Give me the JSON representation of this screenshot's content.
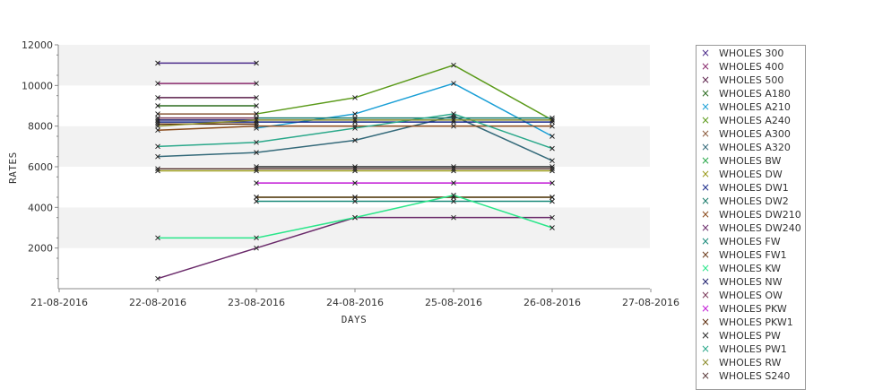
{
  "chart_data": {
    "type": "line",
    "xlabel": "DAYS",
    "ylabel": "RATES",
    "ylim": [
      0,
      12000
    ],
    "y_ticks": [
      2000,
      4000,
      6000,
      8000,
      10000,
      12000
    ],
    "x_ticks": [
      "21-08-2016",
      "22-08-2016",
      "23-08-2016",
      "24-08-2016",
      "25-08-2016",
      "26-08-2016",
      "27-08-2016"
    ],
    "grid": "alternating horizontal bands",
    "legend_position": "right",
    "series": [
      {
        "name": "WHOLES 300",
        "color": "#4b2b8a",
        "points": [
          [
            "22-08-2016",
            11100
          ],
          [
            "23-08-2016",
            11100
          ]
        ]
      },
      {
        "name": "WHOLES 400",
        "color": "#8a2b6e",
        "points": [
          [
            "22-08-2016",
            10100
          ],
          [
            "23-08-2016",
            10100
          ]
        ]
      },
      {
        "name": "WHOLES 500",
        "color": "#5a1f4a",
        "points": [
          [
            "22-08-2016",
            9400
          ],
          [
            "23-08-2016",
            9400
          ]
        ]
      },
      {
        "name": "WHOLES A180",
        "color": "#2b6b1f",
        "points": [
          [
            "22-08-2016",
            9000
          ],
          [
            "23-08-2016",
            9000
          ]
        ]
      },
      {
        "name": "WHOLES A210",
        "color": "#1a9fd6",
        "points": [
          [
            "23-08-2016",
            7900
          ],
          [
            "24-08-2016",
            8600
          ],
          [
            "25-08-2016",
            10100
          ],
          [
            "26-08-2016",
            7500
          ]
        ]
      },
      {
        "name": "WHOLES A240",
        "color": "#5b9a1a",
        "points": [
          [
            "23-08-2016",
            8600
          ],
          [
            "24-08-2016",
            9400
          ],
          [
            "25-08-2016",
            11000
          ],
          [
            "26-08-2016",
            8300
          ]
        ]
      },
      {
        "name": "WHOLES A300",
        "color": "#8b5a3c",
        "points": [
          [
            "22-08-2016",
            8600
          ],
          [
            "23-08-2016",
            8600
          ]
        ]
      },
      {
        "name": "WHOLES A320",
        "color": "#356a7a",
        "points": [
          [
            "22-08-2016",
            6500
          ],
          [
            "23-08-2016",
            6700
          ],
          [
            "24-08-2016",
            7300
          ],
          [
            "25-08-2016",
            8500
          ],
          [
            "26-08-2016",
            6300
          ]
        ]
      },
      {
        "name": "WHOLES BW",
        "color": "#2aa84a",
        "points": [
          [
            "23-08-2016",
            4500
          ],
          [
            "24-08-2016",
            4500
          ],
          [
            "25-08-2016",
            4500
          ],
          [
            "26-08-2016",
            4500
          ]
        ]
      },
      {
        "name": "WHOLES DW",
        "color": "#9a9a1a",
        "points": [
          [
            "22-08-2016",
            5800
          ],
          [
            "23-08-2016",
            5800
          ],
          [
            "24-08-2016",
            5800
          ],
          [
            "25-08-2016",
            5800
          ],
          [
            "26-08-2016",
            5800
          ]
        ]
      },
      {
        "name": "WHOLES DW1",
        "color": "#1a2a8a",
        "points": [
          [
            "22-08-2016",
            8200
          ],
          [
            "23-08-2016",
            8200
          ],
          [
            "24-08-2016",
            8200
          ],
          [
            "25-08-2016",
            8200
          ],
          [
            "26-08-2016",
            8200
          ]
        ]
      },
      {
        "name": "WHOLES DW2",
        "color": "#1a7a6a",
        "points": [
          [
            "23-08-2016",
            8400
          ],
          [
            "24-08-2016",
            8400
          ],
          [
            "25-08-2016",
            8400
          ],
          [
            "26-08-2016",
            8400
          ]
        ]
      },
      {
        "name": "WHOLES DW210",
        "color": "#8a4a1a",
        "points": [
          [
            "22-08-2016",
            7800
          ],
          [
            "23-08-2016",
            8000
          ],
          [
            "24-08-2016",
            8000
          ],
          [
            "25-08-2016",
            8000
          ],
          [
            "26-08-2016",
            8000
          ]
        ]
      },
      {
        "name": "WHOLES DW240",
        "color": "#6a2a6a",
        "points": [
          [
            "22-08-2016",
            500
          ],
          [
            "23-08-2016",
            2000
          ],
          [
            "24-08-2016",
            3500
          ],
          [
            "25-08-2016",
            3500
          ],
          [
            "26-08-2016",
            3500
          ]
        ]
      },
      {
        "name": "WHOLES FW",
        "color": "#1a8a7a",
        "points": [
          [
            "23-08-2016",
            4300
          ],
          [
            "24-08-2016",
            4300
          ],
          [
            "25-08-2016",
            4300
          ],
          [
            "26-08-2016",
            4300
          ]
        ]
      },
      {
        "name": "WHOLES FW1",
        "color": "#6a3a1a",
        "points": [
          [
            "23-08-2016",
            4500
          ],
          [
            "24-08-2016",
            4500
          ],
          [
            "25-08-2016",
            4500
          ],
          [
            "26-08-2016",
            4500
          ]
        ]
      },
      {
        "name": "WHOLES KW",
        "color": "#2ae68a",
        "points": [
          [
            "22-08-2016",
            2500
          ],
          [
            "23-08-2016",
            2500
          ],
          [
            "24-08-2016",
            3500
          ],
          [
            "25-08-2016",
            4600
          ],
          [
            "26-08-2016",
            3000
          ]
        ]
      },
      {
        "name": "WHOLES NW",
        "color": "#1a1a6a",
        "points": [
          [
            "22-08-2016",
            8300
          ],
          [
            "23-08-2016",
            8300
          ]
        ]
      },
      {
        "name": "WHOLES OW",
        "color": "#7a3a5a",
        "points": [
          [
            "22-08-2016",
            8400
          ],
          [
            "23-08-2016",
            8400
          ]
        ]
      },
      {
        "name": "WHOLES PKW",
        "color": "#c21ad6",
        "points": [
          [
            "23-08-2016",
            5200
          ],
          [
            "24-08-2016",
            5200
          ],
          [
            "25-08-2016",
            5200
          ],
          [
            "26-08-2016",
            5200
          ]
        ]
      },
      {
        "name": "WHOLES PKW1",
        "color": "#5a2a0a",
        "points": [
          [
            "22-08-2016",
            8100
          ],
          [
            "23-08-2016",
            8100
          ]
        ]
      },
      {
        "name": "WHOLES PW",
        "color": "#2a2a2a",
        "points": [
          [
            "23-08-2016",
            6000
          ],
          [
            "24-08-2016",
            6000
          ],
          [
            "25-08-2016",
            6000
          ],
          [
            "26-08-2016",
            6000
          ]
        ]
      },
      {
        "name": "WHOLES PW1",
        "color": "#2aa88a",
        "points": [
          [
            "22-08-2016",
            7000
          ],
          [
            "23-08-2016",
            7200
          ],
          [
            "24-08-2016",
            7900
          ],
          [
            "25-08-2016",
            8600
          ],
          [
            "26-08-2016",
            6900
          ]
        ]
      },
      {
        "name": "WHOLES RW",
        "color": "#8a8a2a",
        "points": [
          [
            "22-08-2016",
            8000
          ],
          [
            "23-08-2016",
            8300
          ],
          [
            "24-08-2016",
            8300
          ],
          [
            "25-08-2016",
            8300
          ],
          [
            "26-08-2016",
            8300
          ]
        ]
      },
      {
        "name": "WHOLES S240",
        "color": "#5a3a3a",
        "points": [
          [
            "22-08-2016",
            5900
          ],
          [
            "23-08-2016",
            5900
          ],
          [
            "24-08-2016",
            5900
          ],
          [
            "25-08-2016",
            5900
          ],
          [
            "26-08-2016",
            5900
          ]
        ]
      }
    ]
  }
}
